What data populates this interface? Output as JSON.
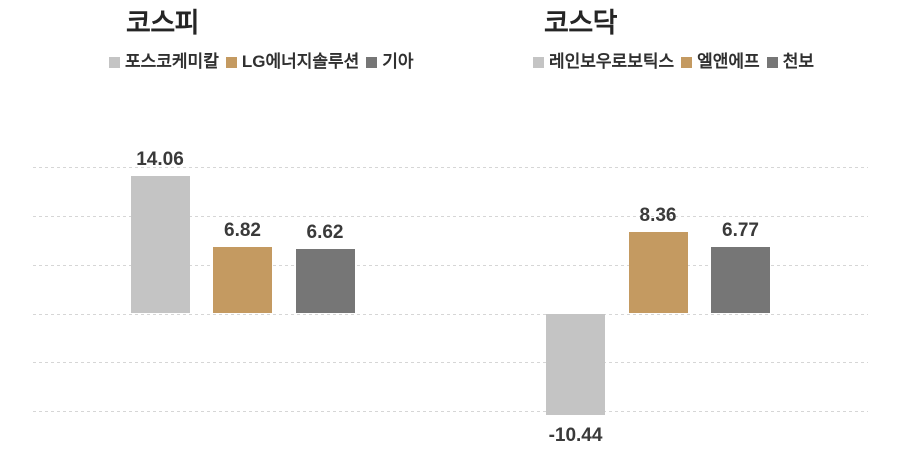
{
  "page": {
    "background": "#ffffff"
  },
  "chart_data": [
    {
      "type": "bar",
      "title": "코스피",
      "categories": [
        "포스코케미칼",
        "LG에너지솔루션",
        "기아"
      ],
      "values": [
        14.06,
        6.82,
        6.62
      ],
      "value_labels": [
        "14.06",
        "6.82",
        "6.62"
      ],
      "colors": [
        "#c4c4c4",
        "#c49a61",
        "#767676"
      ],
      "ylim": [
        -12.5,
        16.5
      ],
      "gridline_values": [
        15,
        10,
        5,
        0,
        -5,
        -10
      ],
      "grid": "horizontal-dotted",
      "legend_position": "top",
      "value_label_position": "outside-end",
      "axis_labels_visible": false
    },
    {
      "type": "bar",
      "title": "코스닥",
      "categories": [
        "레인보우로보틱스",
        "엘앤에프",
        "천보"
      ],
      "values": [
        -10.44,
        8.36,
        6.77
      ],
      "value_labels": [
        "-10.44",
        "8.36",
        "6.77"
      ],
      "colors": [
        "#c4c4c4",
        "#c49a61",
        "#767676"
      ],
      "ylim": [
        -12.5,
        16.5
      ],
      "gridline_values": [
        15,
        10,
        5,
        0,
        -5,
        -10
      ],
      "grid": "horizontal-dotted",
      "legend_position": "top",
      "value_label_position": "outside-end",
      "axis_labels_visible": false
    }
  ]
}
